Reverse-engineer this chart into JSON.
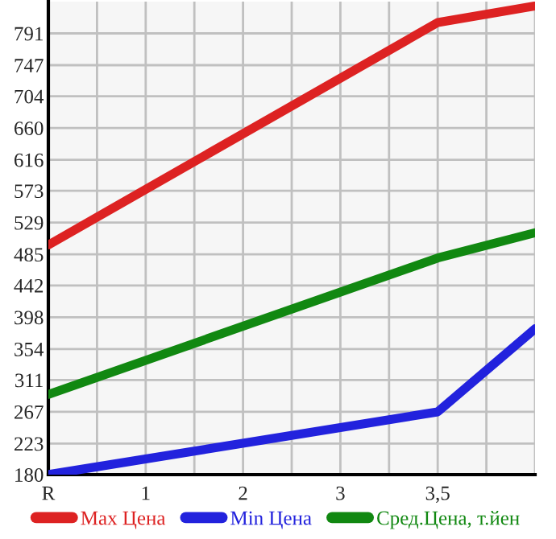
{
  "chart_data": {
    "type": "line",
    "categories": [
      "R",
      "1",
      "2",
      "3",
      "3,5",
      null
    ],
    "series": [
      {
        "name": "Max Цена",
        "color": "#dd2222",
        "values": [
          498,
          null,
          null,
          null,
          806,
          829
        ]
      },
      {
        "name": "Min Цена",
        "color": "#2222dd",
        "values": [
          180,
          null,
          null,
          null,
          267,
          382
        ]
      },
      {
        "name": "Сред.Цена, т.йен",
        "color": "#118811",
        "values": [
          291,
          null,
          null,
          null,
          480,
          515
        ]
      }
    ],
    "ylim": [
      180,
      835
    ],
    "yticks": [
      180,
      223,
      267,
      311,
      354,
      398,
      442,
      485,
      529,
      573,
      616,
      660,
      704,
      747,
      791
    ],
    "grid": true,
    "legend": "bottom",
    "marker": "none",
    "line_style": "solid"
  }
}
